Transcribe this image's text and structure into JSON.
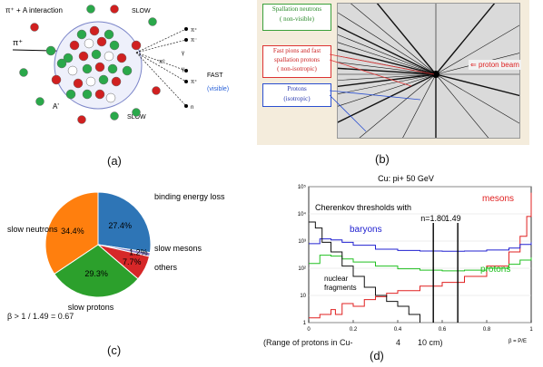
{
  "panel_a": {
    "title": "π⁺ + A interaction",
    "slow_top": "SLOW",
    "slow_bottom": "SLOW",
    "fast": "FAST",
    "visible": "(visible)",
    "incoming": "π⁺",
    "nucleus_label": "A'",
    "outgoing": [
      "π⁺",
      "π⁻",
      "γ",
      "π⁰",
      "γ",
      "π⁺",
      "n"
    ],
    "caption": "(a)"
  },
  "panel_b": {
    "label_neutrons_1": "Spallation neutrons",
    "label_neutrons_2": "( non-visible)",
    "label_fast_1": "Fast pions and fast",
    "label_fast_2": "spallation protons",
    "label_fast_3": "( non-isotropic)",
    "label_protons_1": "Protons",
    "label_protons_2": "(isotropic)",
    "beam": "proton beam",
    "caption": "(b)"
  },
  "panel_c": {
    "caption": "(c)",
    "beta_note": "β > 1 / 1.49 = 0.67",
    "chart_data": {
      "type": "pie",
      "slices": [
        {
          "label": "binding energy loss",
          "value": 27.4,
          "text": "27.4%",
          "color": "#2e75b6"
        },
        {
          "label": "slow mesons",
          "value": 1.2,
          "text": "1.2%",
          "color": "#8a80c8"
        },
        {
          "label": "others",
          "value": 7.7,
          "text": "7.7%",
          "color": "#d62728"
        },
        {
          "label": "slow protons",
          "value": 29.3,
          "text": "29.3%",
          "color": "#2ca02c"
        },
        {
          "label": "slow neutrons",
          "value": 34.4,
          "text": "34.4%",
          "color": "#ff7f0e"
        }
      ]
    }
  },
  "panel_d": {
    "caption": "(d)",
    "range_note": "(Range of protons in Cu-",
    "range_4": "4",
    "range_10": "10 cm)",
    "chart_data": {
      "type": "line",
      "title": "Cu: pi+ 50 GeV",
      "xlabel": "β = P/E",
      "x_ticks": [
        "0",
        "0.2",
        "0.4",
        "0.6",
        "0.8",
        "1"
      ],
      "y_ticks": [
        "1",
        "10",
        "10²",
        "10³",
        "10⁴",
        "10⁵"
      ],
      "y_log": true,
      "xlim": [
        0,
        1
      ],
      "ylim": [
        1,
        100000
      ],
      "annotation": "Cherenkov thresholds with",
      "thresholds": [
        {
          "label": "n=1.80",
          "x": 0.56
        },
        {
          "label": "1.49",
          "x": 0.67
        }
      ],
      "series": [
        {
          "name": "mesons",
          "color": "#e02020",
          "x": [
            0.0,
            0.05,
            0.1,
            0.12,
            0.15,
            0.2,
            0.25,
            0.3,
            0.35,
            0.4,
            0.5,
            0.6,
            0.7,
            0.8,
            0.9,
            0.95,
            0.98,
            1.0
          ],
          "y": [
            1.5,
            2,
            3,
            2,
            5,
            4,
            7,
            9,
            12,
            15,
            22,
            30,
            50,
            120,
            400,
            1500,
            8000,
            60000
          ]
        },
        {
          "name": "baryons",
          "color": "#2020d0",
          "x": [
            0.0,
            0.05,
            0.1,
            0.15,
            0.2,
            0.3,
            0.4,
            0.5,
            0.6,
            0.7,
            0.8,
            0.9,
            0.95,
            1.0
          ],
          "y": [
            800,
            1200,
            1100,
            900,
            700,
            500,
            450,
            430,
            420,
            430,
            470,
            550,
            750,
            900
          ]
        },
        {
          "name": "protons",
          "color": "#20c020",
          "x": [
            0.0,
            0.05,
            0.1,
            0.15,
            0.2,
            0.3,
            0.4,
            0.5,
            0.6,
            0.7,
            0.8,
            0.9,
            0.95,
            1.0
          ],
          "y": [
            150,
            300,
            280,
            220,
            170,
            120,
            95,
            85,
            80,
            85,
            100,
            140,
            200,
            250
          ]
        },
        {
          "name": "nuclear fragments",
          "color": "#111111",
          "x": [
            0.0,
            0.03,
            0.06,
            0.1,
            0.15,
            0.2,
            0.25,
            0.3,
            0.35,
            0.4,
            0.45,
            0.5
          ],
          "y": [
            5000,
            3000,
            900,
            400,
            120,
            50,
            20,
            10,
            6,
            4,
            2,
            1
          ]
        }
      ]
    }
  }
}
